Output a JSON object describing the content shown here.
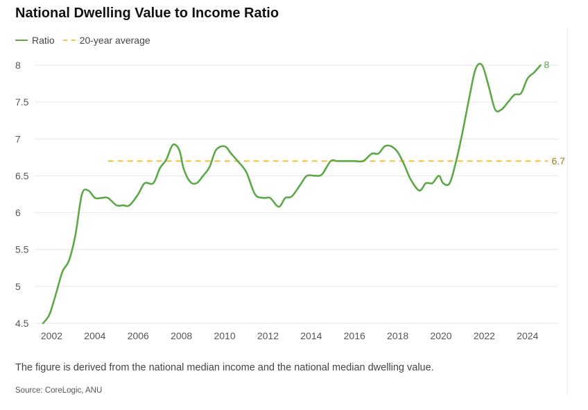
{
  "title": "National Dwelling Value to Income Ratio",
  "note": "The figure is derived from the national median income and the national median dwelling value.",
  "source": "Source: CoreLogic, ANU",
  "colors": {
    "ratio": "#5aa946",
    "average": "#f6c344",
    "average_label": "#9a7a1e",
    "gridline": "#e6e6e6"
  },
  "chart_data": {
    "type": "line",
    "title": "National Dwelling Value to Income Ratio",
    "xlabel": "",
    "ylabel": "",
    "xlim": [
      2001.6,
      2025.0
    ],
    "ylim": [
      4.5,
      8
    ],
    "y_ticks": [
      4.5,
      5,
      5.5,
      6,
      6.5,
      7,
      7.5,
      8
    ],
    "y_tick_labels": [
      "4.5",
      "5",
      "5.5",
      "6",
      "6.5",
      "7",
      "7.5",
      "8"
    ],
    "x_ticks": [
      2002,
      2004,
      2006,
      2008,
      2010,
      2012,
      2014,
      2016,
      2018,
      2020,
      2022,
      2024
    ],
    "x_tick_labels": [
      "2002",
      "2004",
      "2006",
      "2008",
      "2010",
      "2012",
      "2014",
      "2016",
      "2018",
      "2020",
      "2022",
      "2024"
    ],
    "grid": "horizontal",
    "legend_position": "top-left",
    "series": [
      {
        "name": "Ratio",
        "style": "solid",
        "end_label": "8",
        "x": [
          2001.6,
          2001.9,
          2002.2,
          2002.5,
          2002.8,
          2003.1,
          2003.4,
          2003.7,
          2004.0,
          2004.3,
          2004.6,
          2005.0,
          2005.3,
          2005.6,
          2006.0,
          2006.3,
          2006.7,
          2007.0,
          2007.3,
          2007.6,
          2007.9,
          2008.1,
          2008.4,
          2008.7,
          2009.0,
          2009.3,
          2009.6,
          2010.0,
          2010.3,
          2010.6,
          2011.0,
          2011.4,
          2011.8,
          2012.1,
          2012.5,
          2012.8,
          2013.1,
          2013.5,
          2013.8,
          2014.2,
          2014.5,
          2014.9,
          2015.2,
          2015.5,
          2016.0,
          2016.4,
          2016.8,
          2017.1,
          2017.4,
          2017.7,
          2018.0,
          2018.3,
          2018.6,
          2019.0,
          2019.3,
          2019.6,
          2019.9,
          2020.1,
          2020.4,
          2020.7,
          2021.0,
          2021.3,
          2021.6,
          2021.9,
          2022.2,
          2022.5,
          2022.8,
          2023.1,
          2023.4,
          2023.7,
          2024.0,
          2024.3,
          2024.6
        ],
        "y": [
          4.5,
          4.62,
          4.9,
          5.2,
          5.35,
          5.7,
          6.25,
          6.3,
          6.2,
          6.2,
          6.2,
          6.1,
          6.1,
          6.1,
          6.25,
          6.4,
          6.4,
          6.6,
          6.72,
          6.92,
          6.85,
          6.6,
          6.42,
          6.4,
          6.5,
          6.62,
          6.85,
          6.9,
          6.8,
          6.7,
          6.55,
          6.25,
          6.2,
          6.2,
          6.08,
          6.2,
          6.22,
          6.38,
          6.5,
          6.5,
          6.52,
          6.7,
          6.7,
          6.7,
          6.7,
          6.7,
          6.8,
          6.8,
          6.9,
          6.9,
          6.82,
          6.65,
          6.45,
          6.3,
          6.4,
          6.4,
          6.5,
          6.4,
          6.4,
          6.7,
          7.1,
          7.55,
          7.95,
          8.0,
          7.72,
          7.4,
          7.4,
          7.5,
          7.6,
          7.62,
          7.82,
          7.9,
          8.0
        ]
      },
      {
        "name": "20-year average",
        "style": "dashed",
        "end_label": "6.7",
        "x": [
          2004.6,
          2024.95
        ],
        "y": [
          6.7,
          6.7
        ]
      }
    ]
  }
}
